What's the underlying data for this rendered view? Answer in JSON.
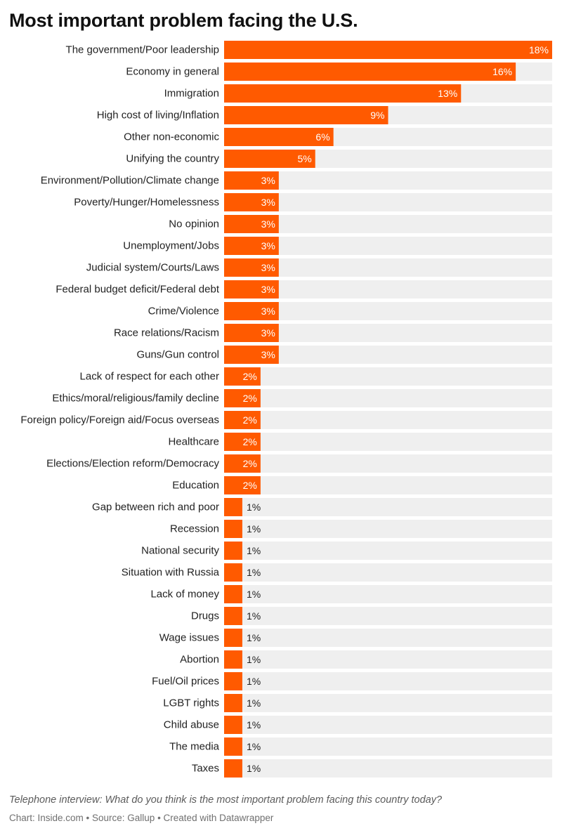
{
  "title": "Most important problem facing the U.S.",
  "note": "Telephone interview: What do you think is the most important problem facing this country today?",
  "source": "Chart: Inside.com • Source: Gallup • Created with Datawrapper",
  "colors": {
    "bar": "#ff5a00",
    "track": "#efefef",
    "label_inside": "#ffffff",
    "label_outside": "#222222"
  },
  "chart_data": {
    "type": "bar",
    "orientation": "horizontal",
    "title": "Most important problem facing the U.S.",
    "xlim": [
      0,
      18
    ],
    "grid": false,
    "value_suffix": "%",
    "categories": [
      "The government/Poor leadership",
      "Economy in general",
      "Immigration",
      "High cost of living/Inflation",
      "Other non-economic",
      "Unifying the country",
      "Environment/Pollution/Climate change",
      "Poverty/Hunger/Homelessness",
      "No opinion",
      "Unemployment/Jobs",
      "Judicial system/Courts/Laws",
      "Federal budget deficit/Federal debt",
      "Crime/Violence",
      "Race relations/Racism",
      "Guns/Gun control",
      "Lack of respect for each other",
      "Ethics/moral/religious/family decline",
      "Foreign policy/Foreign aid/Focus overseas",
      "Healthcare",
      "Elections/Election reform/Democracy",
      "Education",
      "Gap between rich and poor",
      "Recession",
      "National security",
      "Situation with Russia",
      "Lack of money",
      "Drugs",
      "Wage issues",
      "Abortion",
      "Fuel/Oil prices",
      "LGBT rights",
      "Child abuse",
      "The media",
      "Taxes"
    ],
    "values": [
      18,
      16,
      13,
      9,
      6,
      5,
      3,
      3,
      3,
      3,
      3,
      3,
      3,
      3,
      3,
      2,
      2,
      2,
      2,
      2,
      2,
      1,
      1,
      1,
      1,
      1,
      1,
      1,
      1,
      1,
      1,
      1,
      1,
      1
    ]
  }
}
